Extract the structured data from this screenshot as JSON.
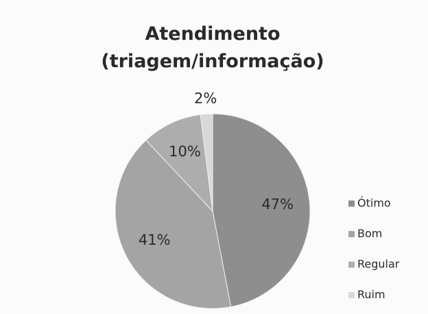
{
  "chart_data": {
    "type": "pie",
    "title": "Atendimento (triagem/informação)",
    "categories": [
      "Ótimo",
      "Bom",
      "Regular",
      "Ruim"
    ],
    "values": [
      47,
      41,
      10,
      2
    ],
    "value_labels": [
      "47%",
      "41%",
      "10%",
      "2%"
    ],
    "colors": [
      "#8e8e8e",
      "#a4a4a4",
      "#adadad",
      "#d8d8d8"
    ],
    "legend": "right"
  }
}
